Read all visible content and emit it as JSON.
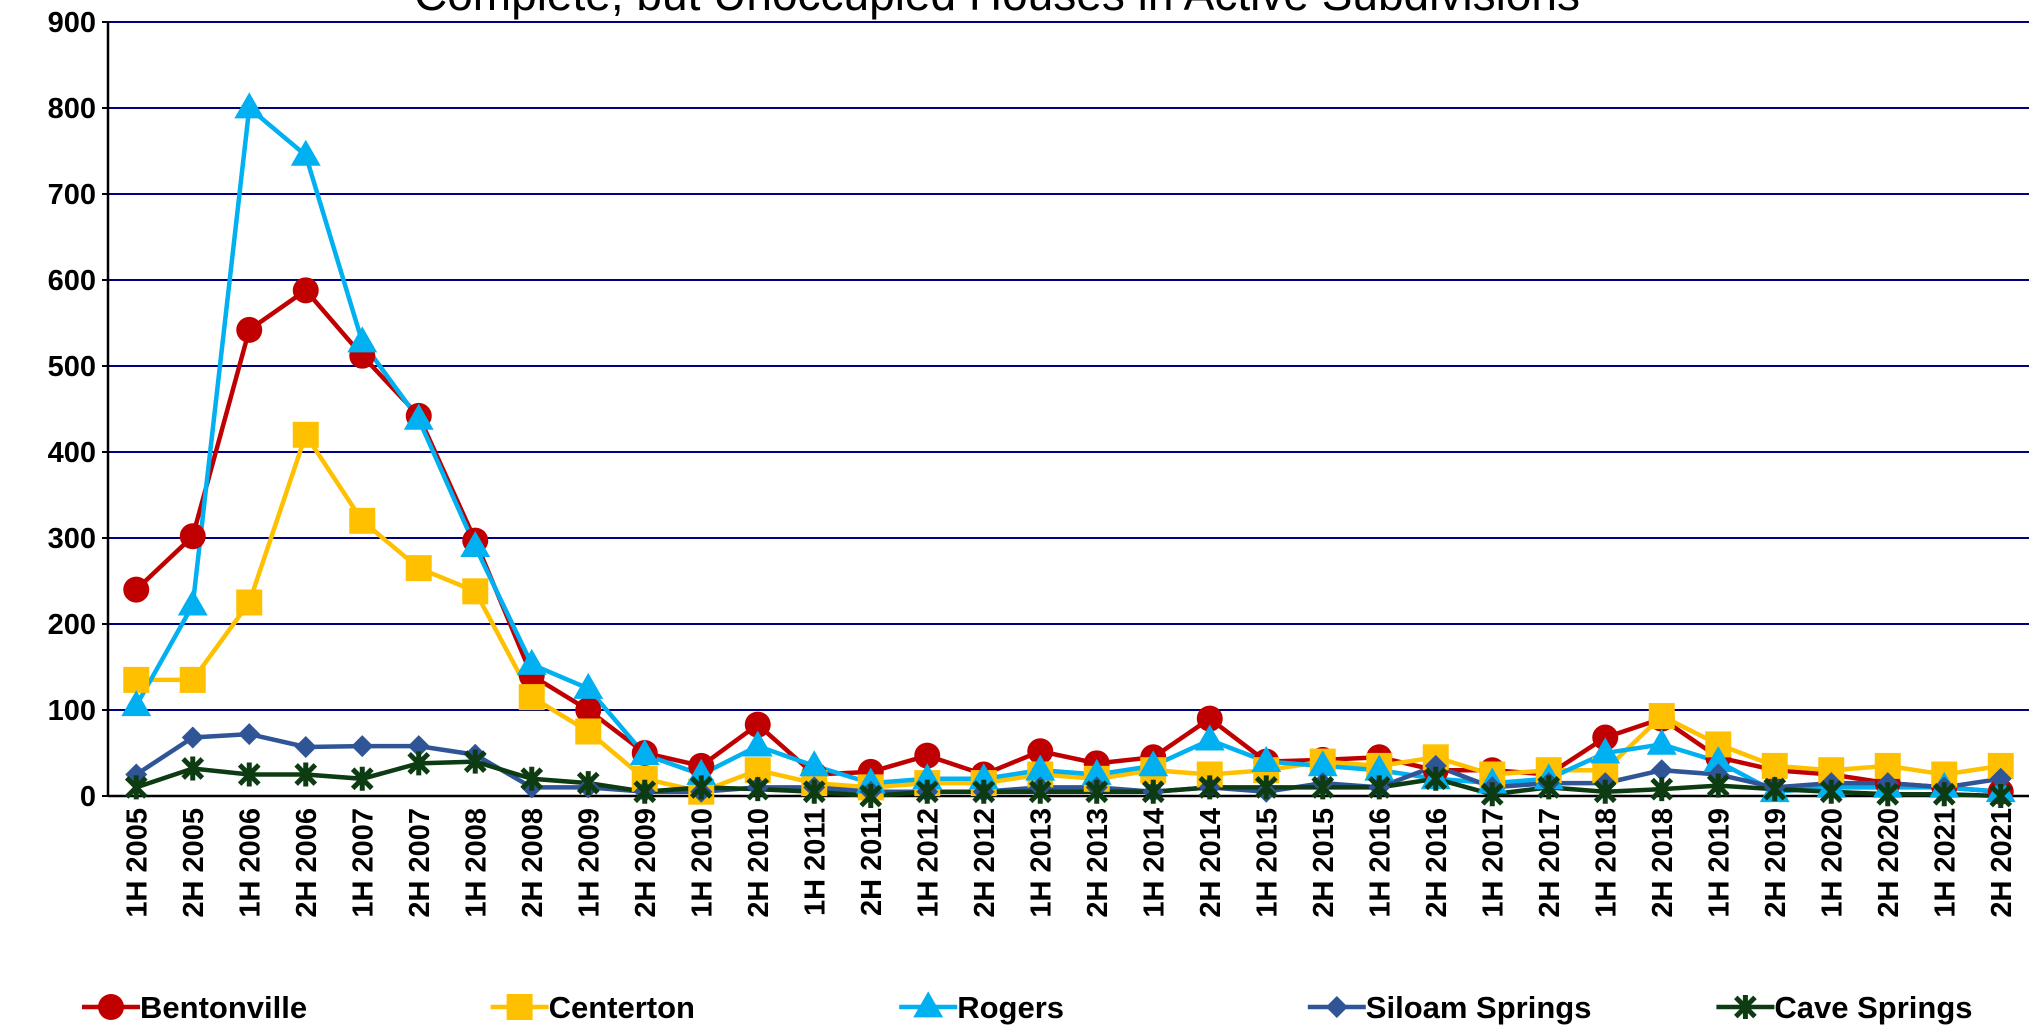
{
  "chart_data": {
    "type": "line",
    "title": "Complete, but Unoccupied Houses in Active Subdivisions",
    "categories": [
      "1H 2005",
      "2H 2005",
      "1H 2006",
      "2H 2006",
      "1H 2007",
      "2H 2007",
      "1H 2008",
      "2H 2008",
      "1H 2009",
      "2H 2009",
      "1H 2010",
      "2H 2010",
      "1H 2011",
      "2H 2011",
      "1H 2012",
      "2H 2012",
      "1H 2013",
      "2H 2013",
      "1H 2014",
      "2H 2014",
      "1H 2015",
      "2H 2015",
      "1H 2016",
      "2H 2016",
      "1H 2017",
      "2H 2017",
      "1H 2018",
      "2H 2018",
      "1H 2019",
      "2H 2019",
      "1H 2020",
      "2H 2020",
      "1H 2021",
      "2H 2021"
    ],
    "series": [
      {
        "name": "Bentonville",
        "color": "#c00000",
        "marker": "circle",
        "values": [
          240,
          302,
          542,
          588,
          512,
          442,
          297,
          140,
          100,
          50,
          35,
          83,
          25,
          28,
          47,
          25,
          52,
          38,
          45,
          90,
          40,
          42,
          45,
          30,
          30,
          25,
          68,
          90,
          45,
          30,
          25,
          15,
          10,
          5
        ]
      },
      {
        "name": "Centerton",
        "color": "#ffc000",
        "marker": "square",
        "values": [
          135,
          135,
          225,
          420,
          320,
          265,
          238,
          115,
          75,
          20,
          5,
          30,
          15,
          10,
          15,
          15,
          25,
          20,
          30,
          25,
          30,
          40,
          35,
          45,
          25,
          30,
          30,
          93,
          60,
          35,
          30,
          35,
          25,
          35
        ]
      },
      {
        "name": "Rogers",
        "color": "#00b0f0",
        "marker": "triangle",
        "values": [
          105,
          222,
          800,
          745,
          528,
          438,
          290,
          153,
          125,
          48,
          25,
          58,
          35,
          15,
          20,
          20,
          30,
          25,
          35,
          65,
          40,
          35,
          30,
          20,
          15,
          20,
          50,
          60,
          40,
          5,
          10,
          10,
          10,
          5
        ]
      },
      {
        "name": "Siloam Springs",
        "color": "#2f5597",
        "marker": "diamond",
        "values": [
          25,
          68,
          72,
          57,
          58,
          58,
          48,
          10,
          10,
          5,
          5,
          10,
          10,
          5,
          5,
          5,
          10,
          10,
          5,
          10,
          5,
          15,
          10,
          35,
          10,
          15,
          15,
          30,
          25,
          10,
          15,
          15,
          10,
          20
        ]
      },
      {
        "name": "Cave Springs",
        "color": "#0d3b12",
        "marker": "star",
        "values": [
          10,
          32,
          25,
          25,
          20,
          38,
          40,
          20,
          15,
          5,
          10,
          8,
          5,
          0,
          5,
          5,
          5,
          5,
          5,
          10,
          10,
          10,
          10,
          20,
          2,
          10,
          5,
          8,
          12,
          8,
          5,
          2,
          2,
          0
        ]
      }
    ],
    "ylim": [
      0,
      900
    ],
    "yticks": [
      0,
      100,
      200,
      300,
      400,
      500,
      600,
      700,
      800,
      900
    ],
    "grid": true,
    "legend": "bottom"
  }
}
